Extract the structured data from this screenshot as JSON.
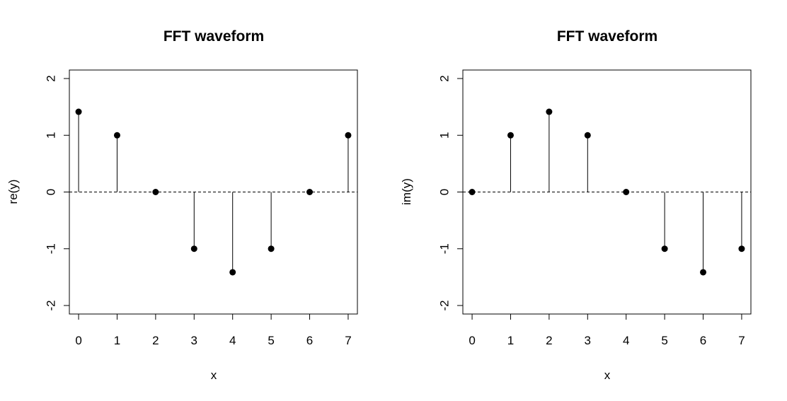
{
  "chart_data": [
    {
      "type": "scatter",
      "style": "stem",
      "title": "FFT waveform",
      "xlabel": "x",
      "ylabel": "re(y)",
      "x": [
        0,
        1,
        2,
        3,
        4,
        5,
        6,
        7
      ],
      "y": [
        1.414,
        1,
        0,
        -1,
        -1.414,
        -1,
        0,
        1
      ],
      "xlim": [
        -0.24,
        7.24
      ],
      "ylim": [
        -2.15,
        2.15
      ],
      "xticks": [
        "0",
        "1",
        "2",
        "3",
        "4",
        "5",
        "6",
        "7"
      ],
      "yticks": [
        "-2",
        "-1",
        "0",
        "1",
        "2"
      ],
      "baseline": 0,
      "grid": false,
      "legend": "none"
    },
    {
      "type": "scatter",
      "style": "stem",
      "title": "FFT waveform",
      "xlabel": "x",
      "ylabel": "im(y)",
      "x": [
        0,
        1,
        2,
        3,
        4,
        5,
        6,
        7
      ],
      "y": [
        0,
        1,
        1.414,
        1,
        0,
        -1,
        -1.414,
        -1
      ],
      "xlim": [
        -0.24,
        7.24
      ],
      "ylim": [
        -2.15,
        2.15
      ],
      "xticks": [
        "0",
        "1",
        "2",
        "3",
        "4",
        "5",
        "6",
        "7"
      ],
      "yticks": [
        "-2",
        "-1",
        "0",
        "1",
        "2"
      ],
      "baseline": 0,
      "grid": false,
      "legend": "none"
    }
  ]
}
